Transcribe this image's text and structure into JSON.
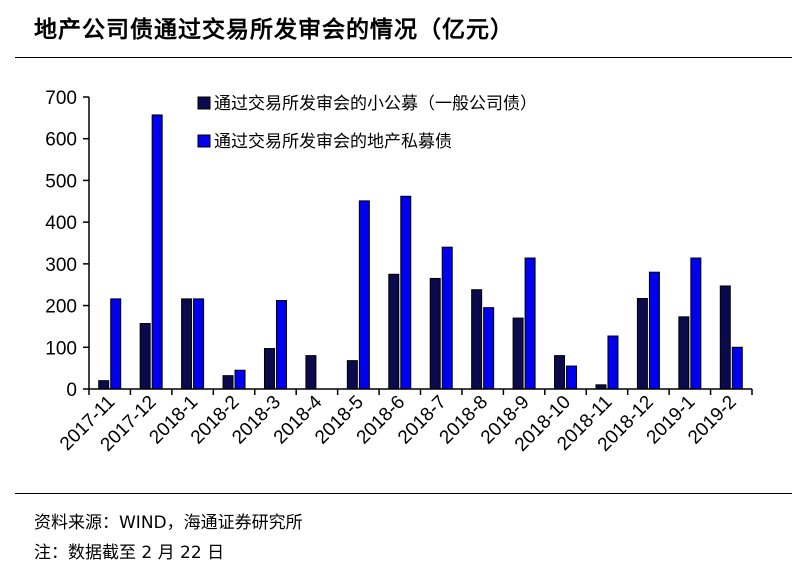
{
  "header": {
    "title": "地产公司债通过交易所发审会的情况（亿元）"
  },
  "footer": {
    "source": "资料来源：WIND，海通证券研究所",
    "note": "注：数据截至 2 月 22 日"
  },
  "colors": {
    "series1": "#0a0a4d",
    "series2": "#0000ee",
    "axis": "#000000"
  },
  "chart_data": {
    "type": "bar",
    "title": "",
    "xlabel": "",
    "ylabel": "",
    "ylim": [
      0,
      700
    ],
    "yticks": [
      0,
      100,
      200,
      300,
      400,
      500,
      600,
      700
    ],
    "grid": false,
    "legend_position": "top",
    "categories": [
      "2017-11",
      "2017-12",
      "2018-1",
      "2018-2",
      "2018-3",
      "2018-4",
      "2018-5",
      "2018-6",
      "2018-7",
      "2018-8",
      "2018-9",
      "2018-10",
      "2018-11",
      "2018-12",
      "2019-1",
      "2019-2"
    ],
    "series": [
      {
        "name": "通过交易所发审会的小公募（一般公司债）",
        "values": [
          20,
          157,
          216,
          32,
          97,
          80,
          68,
          275,
          265,
          238,
          170,
          80,
          10,
          217,
          173,
          247
        ]
      },
      {
        "name": "通过交易所发审会的地产私募债",
        "values": [
          216,
          657,
          216,
          45,
          212,
          0,
          451,
          462,
          340,
          195,
          314,
          55,
          127,
          280,
          314,
          100
        ]
      }
    ]
  }
}
